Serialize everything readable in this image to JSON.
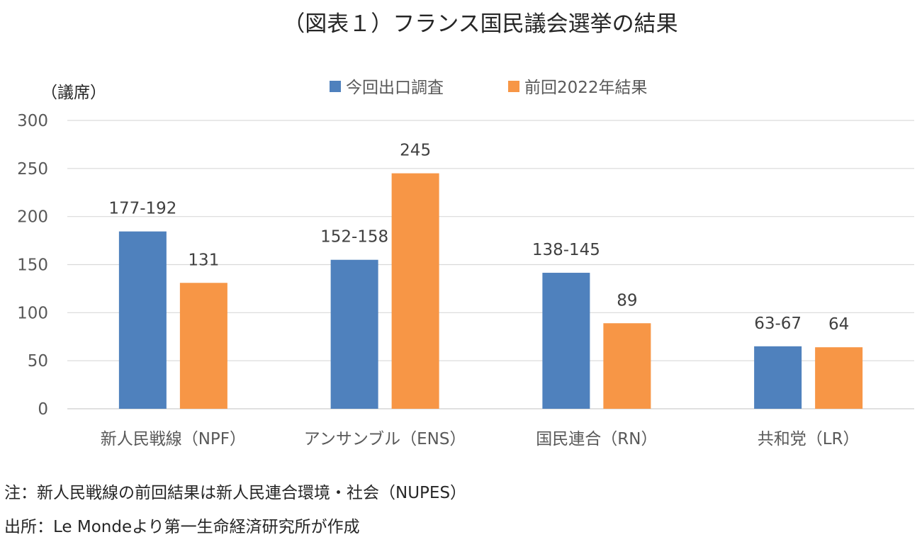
{
  "chart_data": {
    "type": "bar",
    "title": "（図表１）フランス国民議会選挙の結果",
    "ylabel": "（議席）",
    "xlabel": "",
    "ylim": [
      0,
      300
    ],
    "yticks": [
      0,
      50,
      100,
      150,
      200,
      250,
      300
    ],
    "grid": true,
    "legend_position": "top-center",
    "categories": [
      "新人民戦線（NPF）",
      "アンサンブル（ENS）",
      "国民連合（RN）",
      "共和党（LR）"
    ],
    "series": [
      {
        "name": "今回出口調査",
        "color": "#4f81bd",
        "values": [
          184.5,
          155,
          141.5,
          65
        ],
        "data_labels": [
          "177-192",
          "152-158",
          "138-145",
          "63-67"
        ]
      },
      {
        "name": "前回2022年結果",
        "color": "#f79646",
        "values": [
          131,
          245,
          89,
          64
        ],
        "data_labels": [
          "131",
          "245",
          "89",
          "64"
        ]
      }
    ]
  },
  "notes": {
    "note1": "注：新人民戦線の前回結果は新人民連合環境・社会（NUPES）",
    "note2": "出所：Le Mondeより第一生命経済研究所が作成"
  }
}
